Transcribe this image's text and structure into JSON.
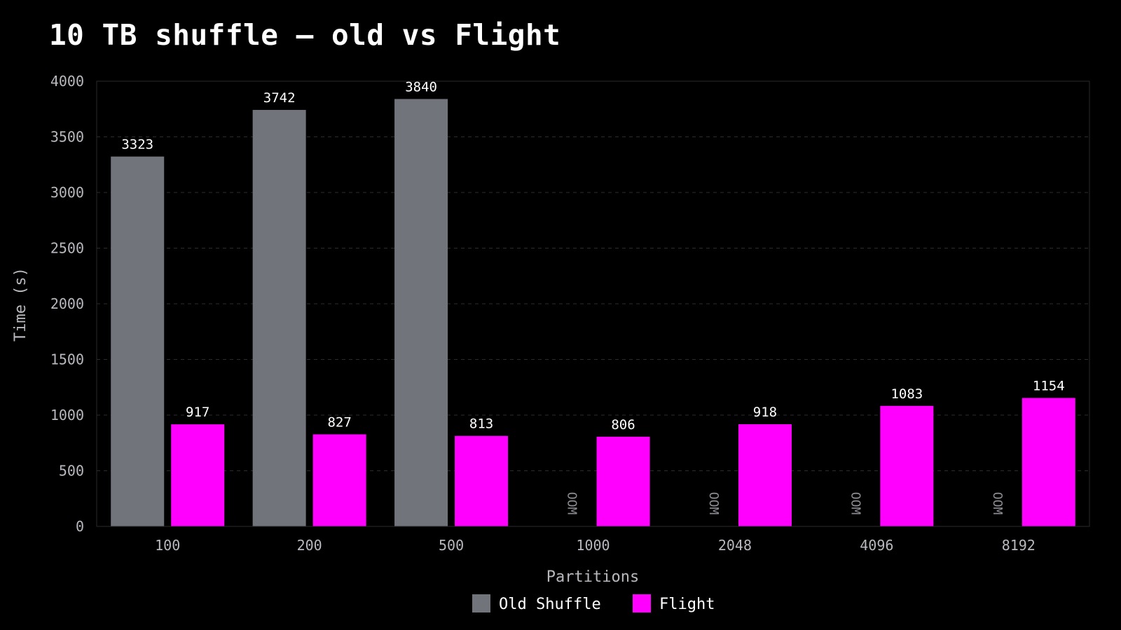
{
  "chart_data": {
    "type": "bar",
    "title": "10 TB shuffle — old vs Flight",
    "xlabel": "Partitions",
    "ylabel": "Time (s)",
    "categories": [
      "100",
      "200",
      "500",
      "1000",
      "2048",
      "4096",
      "8192"
    ],
    "series": [
      {
        "name": "Old Shuffle",
        "color": "#72747c",
        "values": [
          3323,
          3742,
          3840,
          null,
          null,
          null,
          null
        ],
        "missing_label": "OOM"
      },
      {
        "name": "Flight",
        "color": "#ff00ff",
        "values": [
          917,
          827,
          813,
          806,
          918,
          1083,
          1154
        ]
      }
    ],
    "ylim": [
      0,
      4000
    ],
    "yticks": [
      0,
      500,
      1000,
      1500,
      2000,
      2500,
      3000,
      3500,
      4000
    ],
    "grid": "horizontal-dashed",
    "legend_position": "bottom-center",
    "background": "#000000"
  }
}
